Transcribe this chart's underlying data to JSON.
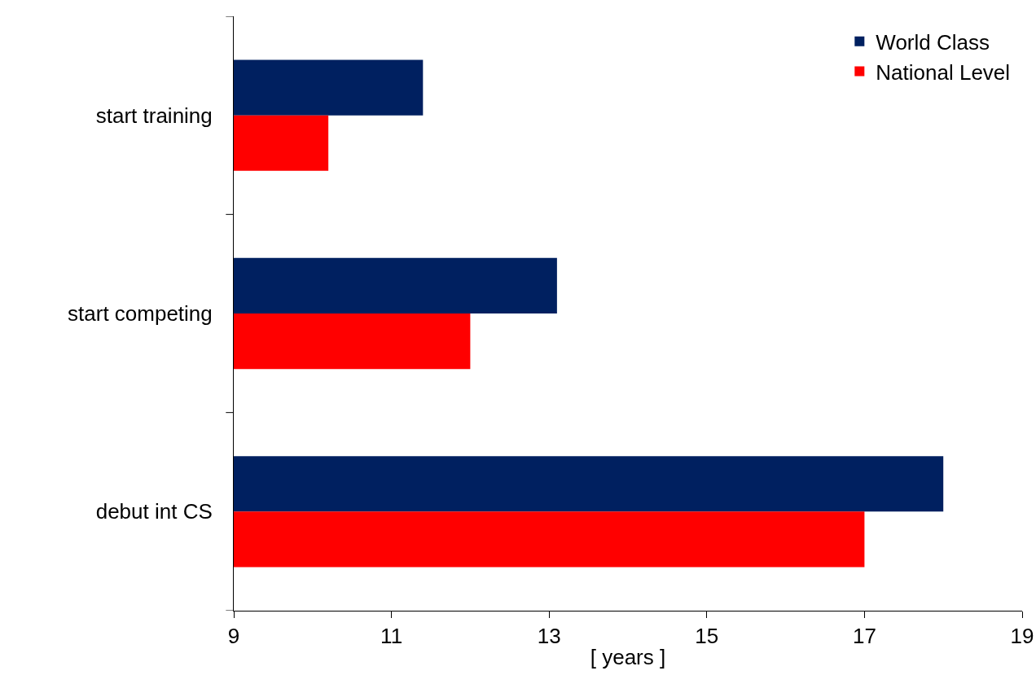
{
  "chart_data": {
    "type": "bar",
    "orientation": "horizontal",
    "xlabel": "[ years ]",
    "categories": [
      "start training",
      "start competing",
      "debut int CS"
    ],
    "series": [
      {
        "name": "World Class",
        "color": "#002060",
        "values": [
          11.4,
          13.1,
          18.0
        ]
      },
      {
        "name": "National Level",
        "color": "#ff0000",
        "values": [
          10.2,
          12.0,
          17.0
        ]
      }
    ],
    "xlim": [
      9,
      19
    ],
    "xticks": [
      9,
      11,
      13,
      15,
      17,
      19
    ],
    "grid": false,
    "legend": "top right"
  }
}
